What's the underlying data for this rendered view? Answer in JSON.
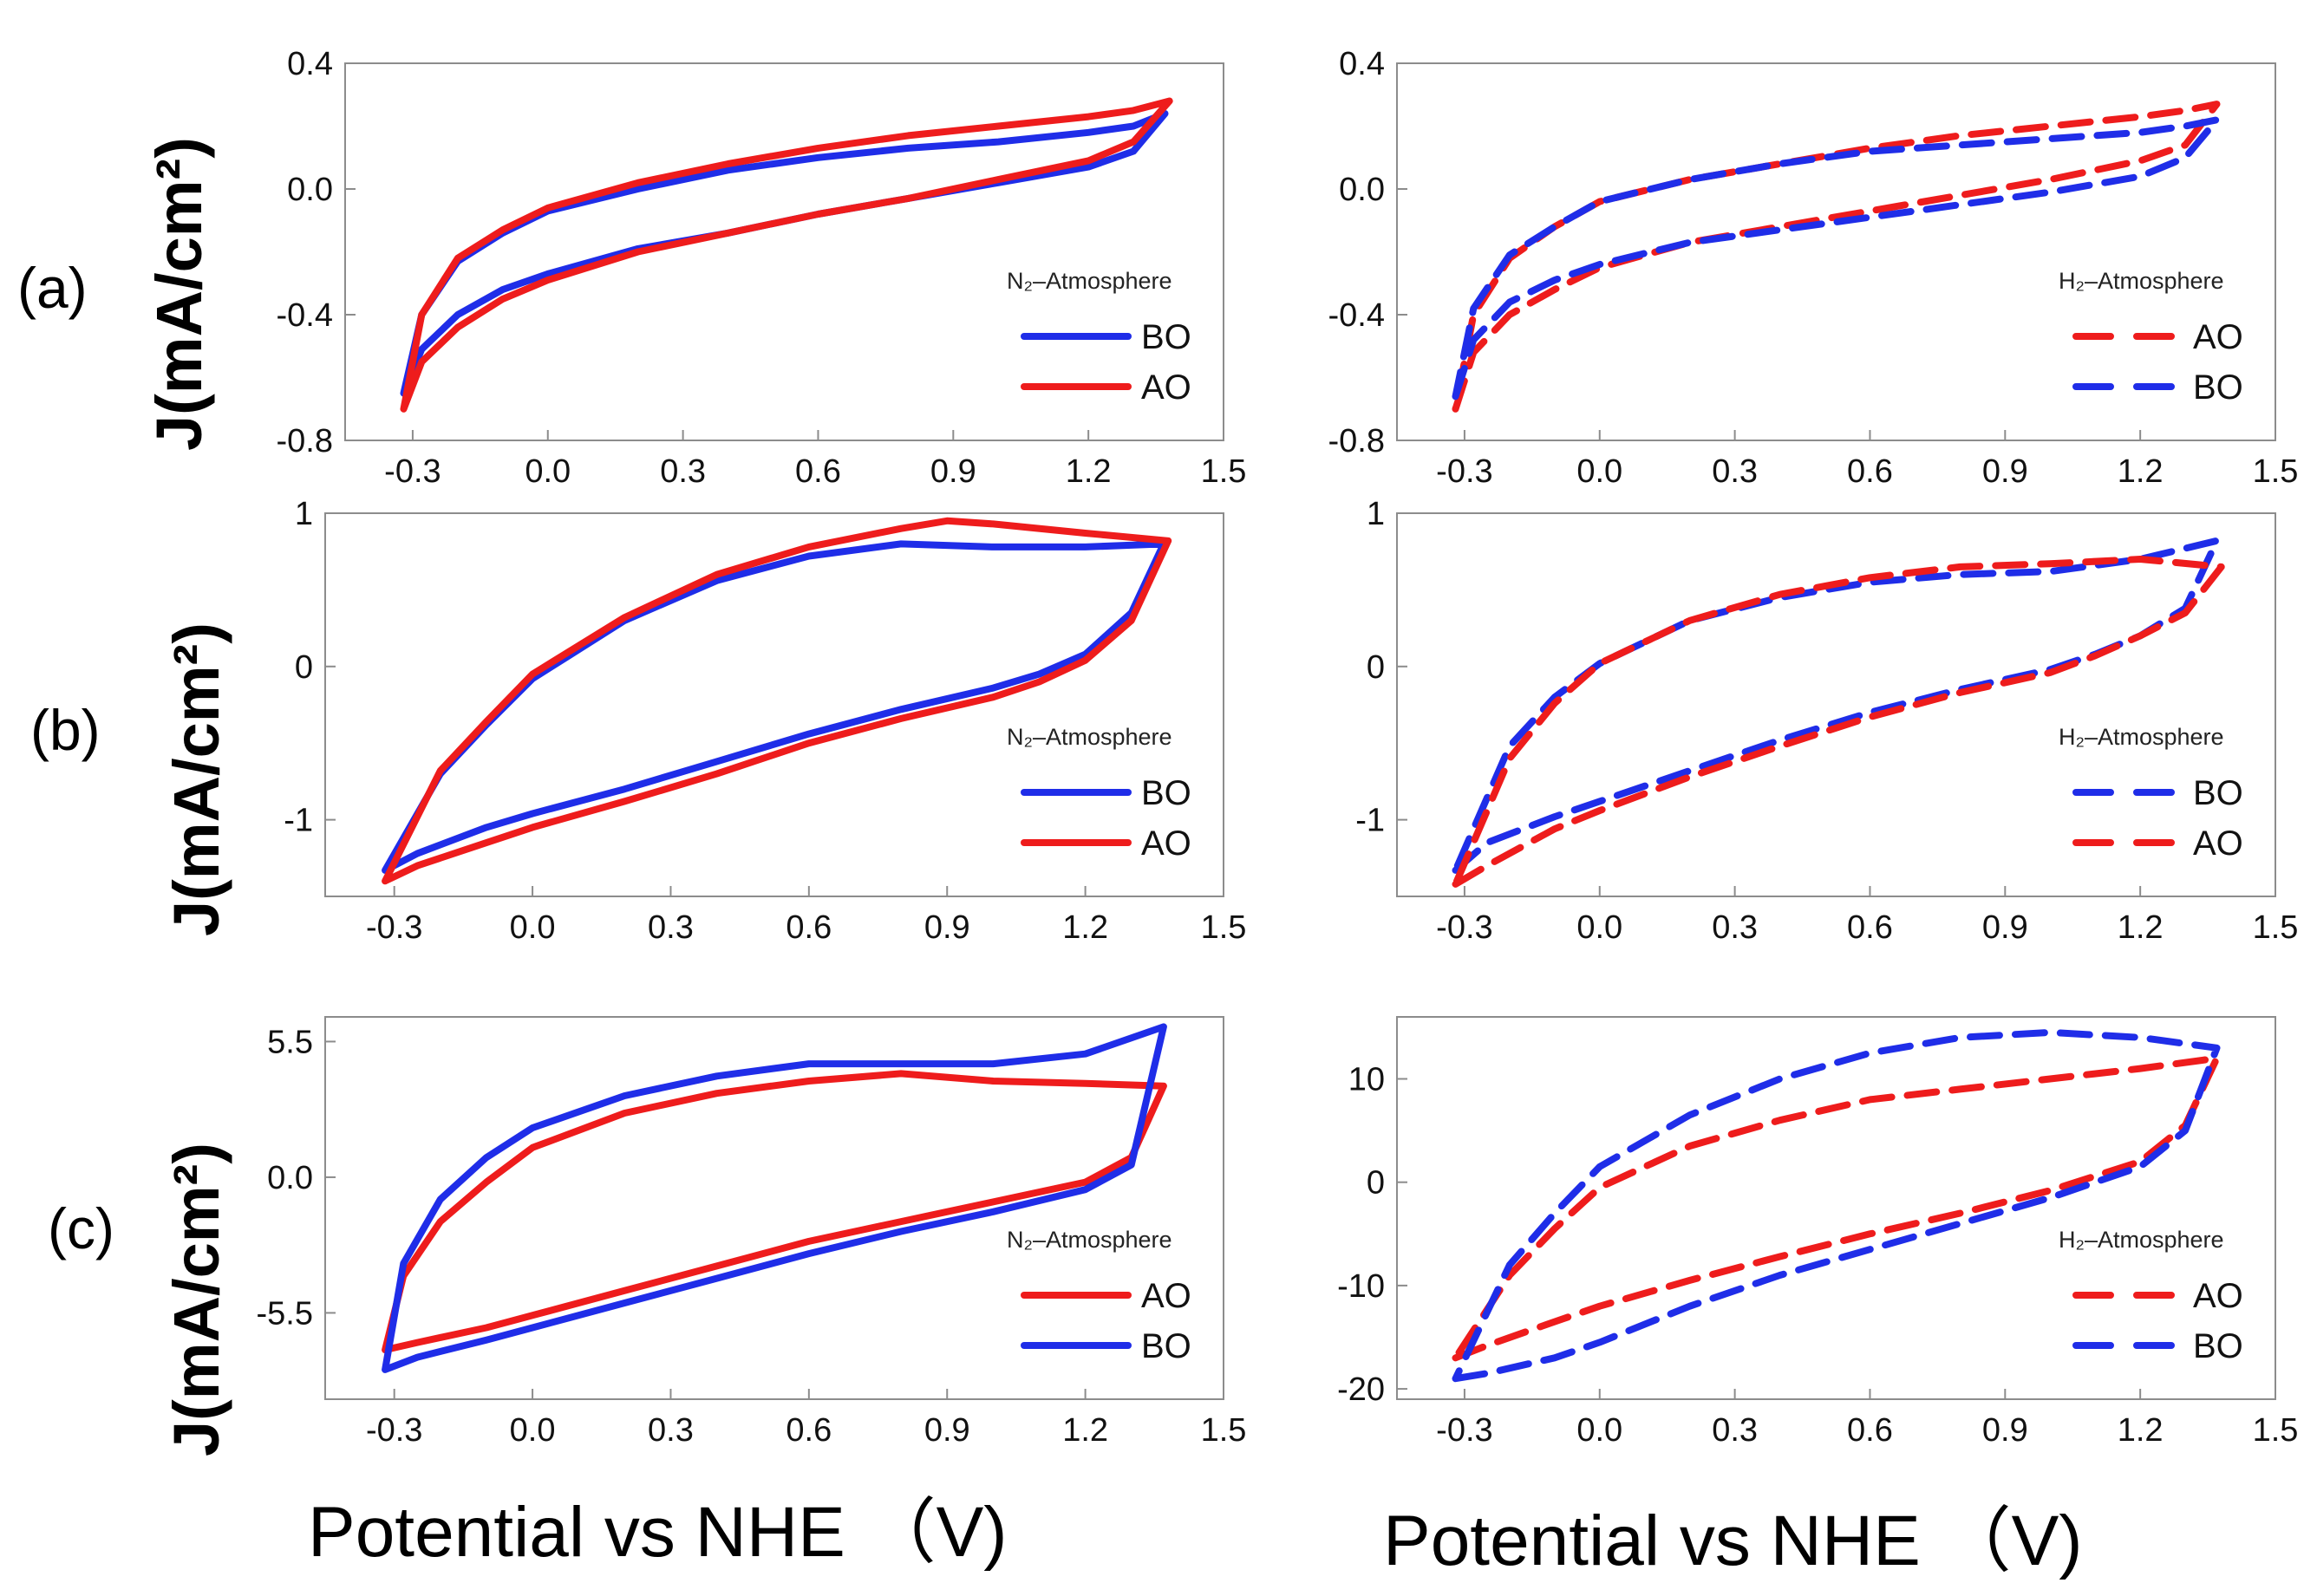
{
  "figure": {
    "panel_labels": [
      "(a)",
      "(b)",
      "(c)"
    ],
    "y_axis_label": "J(mA/cm²)",
    "x_axis_label": "Potential vs NHE （V)"
  },
  "colors": {
    "BO": "#1f2de8",
    "AO": "#ee1c1c"
  },
  "chart_data": [
    {
      "id": "a-N2",
      "type": "line",
      "panel": "(a)",
      "legend_title": "N₂–Atmosphere",
      "legend_position": "bottom-right",
      "xlim": [
        -0.45,
        1.5
      ],
      "ylim": [
        -0.8,
        0.4
      ],
      "xticks": [
        -0.3,
        0.0,
        0.3,
        0.6,
        0.9,
        1.2,
        1.5
      ],
      "yticks": [
        -0.8,
        -0.4,
        0.0,
        0.4
      ],
      "xtick_labels": [
        "-0.3",
        "0.0",
        "0.3",
        "0.6",
        "0.9",
        "1.2",
        "1.5"
      ],
      "ytick_labels": [
        "-0.8",
        "-0.4",
        "0.0",
        "0.4"
      ],
      "series": [
        {
          "name": "BO",
          "style": "solid",
          "x": [
            -0.32,
            -0.28,
            -0.2,
            -0.1,
            0.0,
            0.2,
            0.4,
            0.6,
            0.8,
            1.0,
            1.2,
            1.3,
            1.37,
            1.37,
            1.3,
            1.2,
            1.0,
            0.8,
            0.6,
            0.4,
            0.2,
            0.0,
            -0.1,
            -0.2,
            -0.28,
            -0.32
          ],
          "y": [
            -0.65,
            -0.51,
            -0.4,
            -0.32,
            -0.27,
            -0.19,
            -0.14,
            -0.08,
            -0.03,
            0.02,
            0.07,
            0.12,
            0.24,
            0.24,
            0.2,
            0.18,
            0.15,
            0.13,
            0.1,
            0.06,
            0.0,
            -0.07,
            -0.14,
            -0.23,
            -0.4,
            -0.65
          ]
        },
        {
          "name": "AO",
          "style": "solid",
          "x": [
            -0.32,
            -0.28,
            -0.2,
            -0.1,
            0.0,
            0.2,
            0.4,
            0.6,
            0.8,
            1.0,
            1.2,
            1.3,
            1.38,
            1.38,
            1.3,
            1.2,
            1.0,
            0.8,
            0.6,
            0.4,
            0.2,
            0.0,
            -0.1,
            -0.2,
            -0.28,
            -0.32
          ],
          "y": [
            -0.7,
            -0.55,
            -0.44,
            -0.35,
            -0.29,
            -0.2,
            -0.14,
            -0.08,
            -0.03,
            0.03,
            0.09,
            0.15,
            0.28,
            0.28,
            0.25,
            0.23,
            0.2,
            0.17,
            0.13,
            0.08,
            0.02,
            -0.06,
            -0.13,
            -0.22,
            -0.4,
            -0.7
          ]
        }
      ]
    },
    {
      "id": "a-H2",
      "type": "line",
      "panel": "(a)",
      "legend_title": "H₂–Atmosphere",
      "legend_position": "bottom-right",
      "xlim": [
        -0.45,
        1.5
      ],
      "ylim": [
        -0.8,
        0.4
      ],
      "xticks": [
        -0.3,
        0.0,
        0.3,
        0.6,
        0.9,
        1.2,
        1.5
      ],
      "yticks": [
        -0.8,
        -0.4,
        0.0,
        0.4
      ],
      "xtick_labels": [
        "-0.3",
        "0.0",
        "0.3",
        "0.6",
        "0.9",
        "1.2",
        "1.5"
      ],
      "ytick_labels": [
        "-0.8",
        "-0.4",
        "0.0",
        "0.4"
      ],
      "series": [
        {
          "name": "AO",
          "style": "dashed",
          "x": [
            -0.32,
            -0.28,
            -0.2,
            -0.1,
            0.0,
            0.2,
            0.4,
            0.6,
            0.8,
            1.0,
            1.2,
            1.3,
            1.37,
            1.37,
            1.3,
            1.2,
            1.0,
            0.8,
            0.6,
            0.4,
            0.2,
            0.0,
            -0.1,
            -0.2,
            -0.28,
            -0.32
          ],
          "y": [
            -0.7,
            -0.52,
            -0.4,
            -0.32,
            -0.25,
            -0.17,
            -0.12,
            -0.07,
            -0.02,
            0.03,
            0.09,
            0.14,
            0.27,
            0.27,
            0.25,
            0.23,
            0.2,
            0.17,
            0.13,
            0.08,
            0.03,
            -0.04,
            -0.12,
            -0.22,
            -0.4,
            -0.7
          ]
        },
        {
          "name": "BO",
          "style": "dashed",
          "x": [
            -0.32,
            -0.28,
            -0.2,
            -0.1,
            0.0,
            0.2,
            0.4,
            0.6,
            0.8,
            1.0,
            1.2,
            1.3,
            1.37,
            1.37,
            1.3,
            1.2,
            1.0,
            0.8,
            0.6,
            0.4,
            0.2,
            0.0,
            -0.1,
            -0.2,
            -0.28,
            -0.32
          ],
          "y": [
            -0.66,
            -0.48,
            -0.36,
            -0.29,
            -0.24,
            -0.17,
            -0.13,
            -0.09,
            -0.05,
            -0.01,
            0.04,
            0.1,
            0.22,
            0.22,
            0.2,
            0.18,
            0.16,
            0.14,
            0.12,
            0.08,
            0.03,
            -0.04,
            -0.12,
            -0.21,
            -0.38,
            -0.66
          ]
        }
      ]
    },
    {
      "id": "b-N2",
      "type": "line",
      "panel": "(b)",
      "legend_title": "N₂–Atmosphere",
      "legend_position": "bottom-right",
      "xlim": [
        -0.45,
        1.5
      ],
      "ylim": [
        -1.5,
        1.0
      ],
      "xticks": [
        -0.3,
        0.0,
        0.3,
        0.6,
        0.9,
        1.2,
        1.5
      ],
      "yticks": [
        -1,
        0,
        1
      ],
      "xtick_labels": [
        "-0.3",
        "0.0",
        "0.3",
        "0.6",
        "0.9",
        "1.2",
        "1.5"
      ],
      "ytick_labels": [
        "-1",
        "0",
        "1"
      ],
      "series": [
        {
          "name": "BO",
          "style": "solid",
          "x": [
            -0.32,
            -0.25,
            -0.1,
            0.0,
            0.2,
            0.4,
            0.6,
            0.8,
            1.0,
            1.1,
            1.2,
            1.3,
            1.37,
            1.37,
            1.2,
            1.0,
            0.8,
            0.6,
            0.4,
            0.2,
            0.0,
            -0.1,
            -0.2,
            -0.32
          ],
          "y": [
            -1.33,
            -1.22,
            -1.05,
            -0.96,
            -0.8,
            -0.62,
            -0.44,
            -0.28,
            -0.14,
            -0.05,
            0.08,
            0.35,
            0.8,
            0.8,
            0.78,
            0.78,
            0.8,
            0.72,
            0.56,
            0.3,
            -0.08,
            -0.38,
            -0.7,
            -1.33
          ]
        },
        {
          "name": "AO",
          "style": "solid",
          "x": [
            -0.32,
            -0.25,
            -0.1,
            0.0,
            0.2,
            0.4,
            0.6,
            0.8,
            1.0,
            1.1,
            1.2,
            1.3,
            1.38,
            1.38,
            1.2,
            1.0,
            0.9,
            0.8,
            0.6,
            0.4,
            0.2,
            0.0,
            -0.1,
            -0.2,
            -0.32
          ],
          "y": [
            -1.4,
            -1.3,
            -1.15,
            -1.05,
            -0.88,
            -0.7,
            -0.5,
            -0.34,
            -0.2,
            -0.1,
            0.04,
            0.3,
            0.82,
            0.82,
            0.87,
            0.93,
            0.95,
            0.9,
            0.78,
            0.6,
            0.32,
            -0.05,
            -0.36,
            -0.68,
            -1.4
          ]
        }
      ]
    },
    {
      "id": "b-H2",
      "type": "line",
      "panel": "(b)",
      "legend_title": "H₂–Atmosphere",
      "legend_position": "bottom-right",
      "xlim": [
        -0.45,
        1.5
      ],
      "ylim": [
        -1.5,
        1.0
      ],
      "xticks": [
        -0.3,
        0.0,
        0.3,
        0.6,
        0.9,
        1.2,
        1.5
      ],
      "yticks": [
        -1,
        0,
        1
      ],
      "xtick_labels": [
        "-0.3",
        "0.0",
        "0.3",
        "0.6",
        "0.9",
        "1.2",
        "1.5"
      ],
      "ytick_labels": [
        "-1",
        "0",
        "1"
      ],
      "series": [
        {
          "name": "BO",
          "style": "dashed",
          "x": [
            -0.32,
            -0.25,
            -0.1,
            0.0,
            0.2,
            0.4,
            0.6,
            0.8,
            1.0,
            1.1,
            1.2,
            1.3,
            1.37,
            1.37,
            1.2,
            1.0,
            0.8,
            0.6,
            0.4,
            0.2,
            0.0,
            -0.1,
            -0.2,
            -0.32
          ],
          "y": [
            -1.33,
            -1.15,
            -0.98,
            -0.88,
            -0.68,
            -0.48,
            -0.3,
            -0.15,
            -0.02,
            0.08,
            0.2,
            0.38,
            0.82,
            0.82,
            0.7,
            0.62,
            0.6,
            0.55,
            0.45,
            0.3,
            0.02,
            -0.2,
            -0.52,
            -1.33
          ]
        },
        {
          "name": "AO",
          "style": "dashed",
          "x": [
            -0.32,
            -0.25,
            -0.1,
            0.0,
            0.2,
            0.4,
            0.6,
            0.8,
            1.0,
            1.1,
            1.2,
            1.3,
            1.38,
            1.38,
            1.2,
            1.0,
            0.8,
            0.6,
            0.4,
            0.2,
            0.0,
            -0.1,
            -0.2,
            -0.32
          ],
          "y": [
            -1.42,
            -1.3,
            -1.06,
            -0.94,
            -0.72,
            -0.52,
            -0.33,
            -0.17,
            -0.04,
            0.07,
            0.2,
            0.35,
            0.65,
            0.65,
            0.7,
            0.67,
            0.65,
            0.58,
            0.47,
            0.3,
            0.02,
            -0.24,
            -0.6,
            -1.42
          ]
        }
      ]
    },
    {
      "id": "c-N2",
      "type": "line",
      "panel": "(c)",
      "legend_title": "N₂–Atmosphere",
      "legend_position": "bottom-right",
      "xlim": [
        -0.45,
        1.5
      ],
      "ylim": [
        -9.0,
        6.5
      ],
      "xticks": [
        -0.3,
        0.0,
        0.3,
        0.6,
        0.9,
        1.2,
        1.5
      ],
      "yticks": [
        -5.5,
        0.0,
        5.5
      ],
      "xtick_labels": [
        "-0.3",
        "0.0",
        "0.3",
        "0.6",
        "0.9",
        "1.2",
        "1.5"
      ],
      "ytick_labels": [
        "-5.5",
        "0.0",
        "5.5"
      ],
      "series": [
        {
          "name": "AO",
          "style": "solid",
          "x": [
            -0.32,
            -0.25,
            -0.1,
            0.0,
            0.2,
            0.4,
            0.6,
            0.8,
            1.0,
            1.2,
            1.3,
            1.37,
            1.37,
            1.2,
            1.0,
            0.8,
            0.6,
            0.4,
            0.2,
            0.0,
            -0.1,
            -0.2,
            -0.28,
            -0.32
          ],
          "y": [
            -7.0,
            -6.7,
            -6.1,
            -5.6,
            -4.6,
            -3.6,
            -2.6,
            -1.8,
            -1.0,
            -0.2,
            0.8,
            3.7,
            3.7,
            3.8,
            3.9,
            4.2,
            3.9,
            3.4,
            2.6,
            1.2,
            -0.2,
            -1.8,
            -4.0,
            -7.0
          ]
        },
        {
          "name": "BO",
          "style": "solid",
          "x": [
            -0.32,
            -0.25,
            -0.1,
            0.0,
            0.2,
            0.4,
            0.6,
            0.8,
            1.0,
            1.2,
            1.3,
            1.37,
            1.37,
            1.2,
            1.0,
            0.8,
            0.6,
            0.4,
            0.2,
            0.0,
            -0.1,
            -0.2,
            -0.28,
            -0.32
          ],
          "y": [
            -7.8,
            -7.3,
            -6.6,
            -6.1,
            -5.1,
            -4.1,
            -3.1,
            -2.2,
            -1.4,
            -0.5,
            0.5,
            6.1,
            6.1,
            5.0,
            4.6,
            4.6,
            4.6,
            4.1,
            3.3,
            2.0,
            0.8,
            -0.9,
            -3.5,
            -7.8
          ]
        }
      ]
    },
    {
      "id": "c-H2",
      "type": "line",
      "panel": "(c)",
      "legend_title": "H₂–Atmosphere",
      "legend_position": "bottom-right",
      "xlim": [
        -0.45,
        1.5
      ],
      "ylim": [
        -21,
        16
      ],
      "xticks": [
        -0.3,
        0.0,
        0.3,
        0.6,
        0.9,
        1.2,
        1.5
      ],
      "yticks": [
        -20,
        -10,
        0,
        10
      ],
      "xtick_labels": [
        "-0.3",
        "0.0",
        "0.3",
        "0.6",
        "0.9",
        "1.2",
        "1.5"
      ],
      "ytick_labels": [
        "-20",
        "-10",
        "0",
        "10"
      ],
      "series": [
        {
          "name": "AO",
          "style": "dashed",
          "x": [
            -0.32,
            -0.25,
            -0.1,
            0.0,
            0.2,
            0.4,
            0.6,
            0.8,
            1.0,
            1.2,
            1.3,
            1.37,
            1.37,
            1.2,
            1.0,
            0.8,
            0.6,
            0.4,
            0.2,
            0.0,
            -0.1,
            -0.2,
            -0.32
          ],
          "y": [
            -17,
            -15.8,
            -13.5,
            -12,
            -9.5,
            -7.2,
            -5.0,
            -3.0,
            -0.8,
            2.0,
            5.5,
            12,
            12,
            11,
            10,
            9,
            8,
            6,
            3.5,
            -0.5,
            -4.5,
            -9,
            -17
          ]
        },
        {
          "name": "BO",
          "style": "dashed",
          "x": [
            -0.32,
            -0.25,
            -0.1,
            0.0,
            0.2,
            0.4,
            0.6,
            0.8,
            1.0,
            1.2,
            1.3,
            1.37,
            1.37,
            1.2,
            1.0,
            0.8,
            0.6,
            0.4,
            0.2,
            0.0,
            -0.1,
            -0.2,
            -0.32
          ],
          "y": [
            -19,
            -18.5,
            -17,
            -15.5,
            -12,
            -9,
            -6.5,
            -4,
            -1.5,
            1.5,
            5,
            13,
            13,
            14,
            14.5,
            14,
            12.5,
            10,
            6.5,
            1.5,
            -3,
            -8,
            -19
          ]
        }
      ]
    }
  ]
}
